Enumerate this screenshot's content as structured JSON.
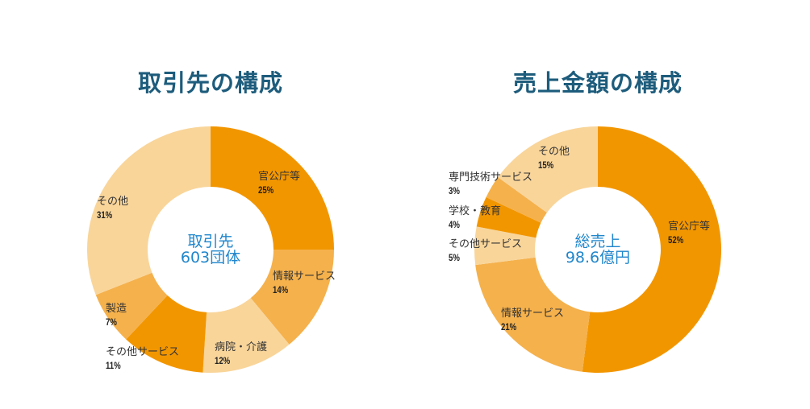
{
  "colors": {
    "dark": "#F29600",
    "medium": "#F5B14C",
    "light": "#F9D59A",
    "title": "#1d5c7c",
    "center": "#1f86cc"
  },
  "chart_data": [
    {
      "type": "pie",
      "title": "取引先の構成",
      "center_label": [
        "取引先",
        "603団体"
      ],
      "slices": [
        {
          "label": "官公庁等",
          "value": 25,
          "pct": "25%",
          "color": "dark"
        },
        {
          "label": "情報サービス",
          "value": 14,
          "pct": "14%",
          "color": "medium"
        },
        {
          "label": "病院・介護",
          "value": 12,
          "pct": "12%",
          "color": "light"
        },
        {
          "label": "その他サービス",
          "value": 11,
          "pct": "11%",
          "color": "dark"
        },
        {
          "label": "製造",
          "value": 7,
          "pct": "7%",
          "color": "medium"
        },
        {
          "label": "その他",
          "value": 31,
          "pct": "31%",
          "color": "light"
        }
      ]
    },
    {
      "type": "pie",
      "title": "売上金額の構成",
      "center_label": [
        "総売上",
        "98.6億円"
      ],
      "slices": [
        {
          "label": "官公庁等",
          "value": 52,
          "pct": "52%",
          "color": "dark"
        },
        {
          "label": "情報サービス",
          "value": 21,
          "pct": "21%",
          "color": "medium"
        },
        {
          "label": "その他サービス",
          "value": 5,
          "pct": "5%",
          "color": "light"
        },
        {
          "label": "学校・教育",
          "value": 4,
          "pct": "4%",
          "color": "dark"
        },
        {
          "label": "専門技術サービス",
          "value": 3,
          "pct": "3%",
          "color": "medium"
        },
        {
          "label": "その他",
          "value": 15,
          "pct": "15%",
          "color": "light"
        }
      ]
    }
  ]
}
